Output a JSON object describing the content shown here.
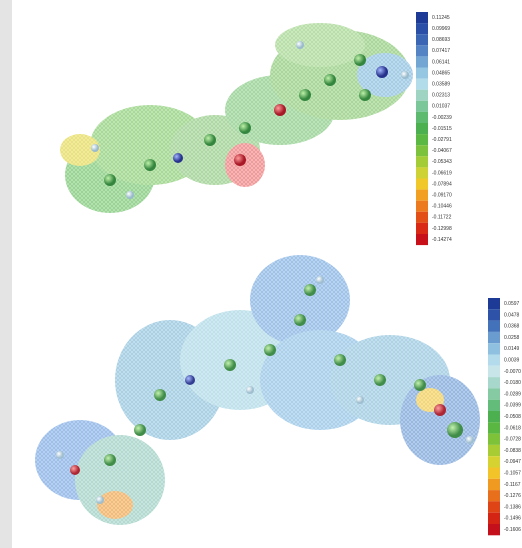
{
  "figure": {
    "scales": [
      {
        "labels": [
          "0.11245",
          "0.09969",
          "0.08693",
          "0.07417",
          "0.06141",
          "0.04865",
          "0.03589",
          "0.02313",
          "0.01037",
          "-0.00239",
          "-0.01515",
          "-0.02791",
          "-0.04067",
          "-0.05343",
          "-0.06619",
          "-0.07894",
          "-0.09170",
          "-0.10446",
          "-0.11722",
          "-0.12998",
          "-0.14274"
        ],
        "colors": [
          "#1c3a96",
          "#2a4fa6",
          "#3a66b4",
          "#5584c4",
          "#74a6d4",
          "#95c6e2",
          "#b2dcea",
          "#9fd3c2",
          "#7cc79a",
          "#5dba6e",
          "#4cb050",
          "#5bb842",
          "#7cc23c",
          "#a4cc36",
          "#cfd234",
          "#f0c82a",
          "#f2a022",
          "#ec7a1e",
          "#e25018",
          "#d82a14",
          "#c8101a"
        ]
      },
      {
        "labels": [
          "0.0597",
          "0.0478",
          "0.0368",
          "0.0258",
          "0.0149",
          "0.0039",
          "-0.0070",
          "-0.0180",
          "-0.0289",
          "-0.0399",
          "-0.0508",
          "-0.0618",
          "-0.0728",
          "-0.0838",
          "-0.0947",
          "-0.1057",
          "-0.1167",
          "-0.1276",
          "-0.1386",
          "-0.1496",
          "-0.1606"
        ],
        "colors": [
          "#1c3a96",
          "#2d52a8",
          "#4472ba",
          "#6a9ccf",
          "#8fc0e0",
          "#b4dbec",
          "#c8e6ea",
          "#a8d8cc",
          "#86caa4",
          "#64bc7a",
          "#4cb050",
          "#5ab842",
          "#7ec23a",
          "#a8cc34",
          "#d6d232",
          "#f2c42a",
          "#f09a22",
          "#e8701c",
          "#de4416",
          "#d42414",
          "#c4101a"
        ]
      }
    ]
  }
}
